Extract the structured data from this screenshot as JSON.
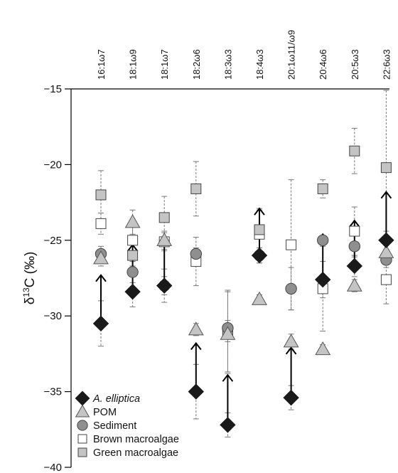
{
  "chart_data": {
    "type": "scatter",
    "ylabel_base": "δ",
    "ylabel_sup": "13",
    "ylabel_rest": "C (‰)",
    "ylim": [
      -40,
      -15
    ],
    "yticks": [
      -15,
      -20,
      -25,
      -30,
      -35,
      -40
    ],
    "categories": [
      "16:1ω7",
      "18:1ω9",
      "18:1ω7",
      "18:2ω6",
      "18:3ω3",
      "18:4ω3",
      "20:1ω11/ω9",
      "20:4ω6",
      "20:5ω3",
      "22:6ω3"
    ],
    "series": [
      {
        "name": "A. elliptica",
        "marker": "diamond",
        "fill": "#1a1a1a",
        "values": [
          -30.5,
          -28.4,
          -28.0,
          -35.0,
          -37.2,
          -26.0,
          -35.4,
          -27.6,
          -26.7,
          -25.0
        ],
        "err": [
          1.5,
          1.0,
          1.1,
          1.8,
          0.8,
          0.5,
          0.8,
          1.2,
          0.7,
          0.6
        ]
      },
      {
        "name": "POM",
        "marker": "triangle",
        "fill": "#c4c4c4",
        "values": [
          -26.2,
          -23.8,
          -25.0,
          -30.9,
          -31.2,
          -28.9,
          -31.7,
          -32.2,
          -28.0,
          -25.8
        ],
        "err": [
          0.5,
          0.8,
          0.6,
          0.4,
          0.5,
          0.3,
          0.5,
          0.3,
          0.4,
          0.6
        ]
      },
      {
        "name": "Sediment",
        "marker": "circle",
        "fill": "#8f8f8f",
        "values": [
          -25.9,
          -27.1,
          -28.0,
          -25.9,
          -30.8,
          -26.0,
          -28.2,
          -25.0,
          -25.4,
          -26.3
        ],
        "err": [
          0.5,
          0.7,
          0.6,
          0.4,
          0.5,
          0.5,
          1.4,
          0.3,
          0.7,
          0.5
        ]
      },
      {
        "name": "Brown macroalgae",
        "marker": "square",
        "fill": "#ffffff",
        "values": [
          -23.9,
          -25.0,
          -25.1,
          -26.4,
          -31.1,
          -24.6,
          -25.3,
          -28.2,
          -24.4,
          -27.6
        ],
        "err": [
          0.7,
          1.4,
          0.6,
          1.6,
          2.7,
          1.6,
          4.3,
          2.8,
          1.6,
          1.6
        ]
      },
      {
        "name": "Green macroalgae",
        "marker": "square",
        "fill": "#c4c4c4",
        "values": [
          -22.0,
          -26.0,
          -23.5,
          -21.6,
          -31.0,
          -24.3,
          null,
          -21.6,
          -19.1,
          -20.2
        ],
        "err": [
          1.6,
          0.7,
          1.4,
          1.8,
          2.7,
          1.4,
          0,
          0.6,
          1.5,
          5.1
        ]
      }
    ],
    "arrows": [
      {
        "category": "16:1ω7",
        "from": -30.5,
        "to": -27.3
      },
      {
        "category": "18:1ω9",
        "from": -28.4,
        "to": -25.3
      },
      {
        "category": "18:1ω7",
        "from": -28.0,
        "to": -24.7
      },
      {
        "category": "18:2ω6",
        "from": -35.0,
        "to": -31.8
      },
      {
        "category": "18:3ω3",
        "from": -37.2,
        "to": -33.9
      },
      {
        "category": "18:4ω3",
        "from": -26.0,
        "to": -22.9
      },
      {
        "category": "20:1ω11/ω9",
        "from": -35.4,
        "to": -32.1
      },
      {
        "category": "20:4ω6",
        "from": -27.6,
        "to": -24.6
      },
      {
        "category": "20:5ω3",
        "from": -26.7,
        "to": -23.7
      },
      {
        "category": "22:6ω3",
        "from": -25.0,
        "to": -21.8
      }
    ],
    "legend": {
      "position": "bottom-left",
      "items": [
        "A. elliptica",
        "POM",
        "Sediment",
        "Brown macroalgae",
        "Green macroalgae"
      ]
    },
    "grid": false
  }
}
